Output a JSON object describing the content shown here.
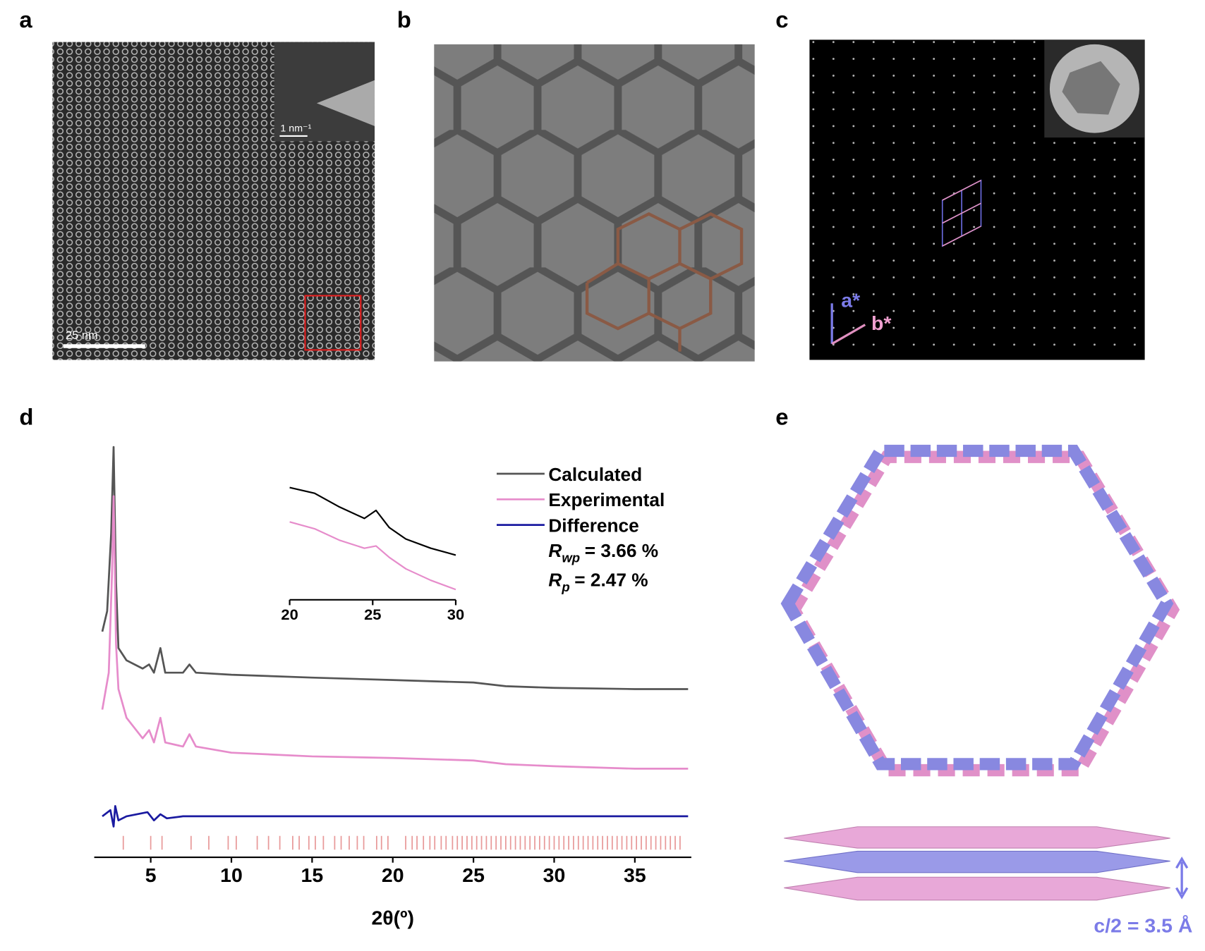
{
  "panel_labels": [
    "a",
    "b",
    "c",
    "d",
    "e"
  ],
  "panel_a": {
    "scale_bar_label": "25 nm",
    "inset_scale_bar_label": "1 nm⁻¹"
  },
  "panel_c": {
    "axis_labels": [
      "a*",
      "b*"
    ]
  },
  "panel_e": {
    "spacing_label": "c/2 = 3.5 Å"
  },
  "chart_data": [
    {
      "type": "line",
      "xlabel": "2θ(º)",
      "xlim": [
        1.5,
        38.5
      ],
      "xticks": [
        5,
        10,
        15,
        20,
        25,
        30,
        35
      ],
      "ylim": [
        0,
        100
      ],
      "series": [
        {
          "name": "Calculated",
          "color": "#555555",
          "x": [
            2.0,
            2.3,
            2.55,
            2.7,
            2.85,
            3.0,
            3.5,
            4.5,
            4.9,
            5.2,
            5.6,
            5.9,
            7.0,
            7.4,
            7.8,
            10,
            15,
            20,
            25,
            27,
            30,
            35,
            38.3
          ],
          "values": [
            55,
            60,
            79,
            100,
            67,
            51,
            48,
            46,
            47,
            45,
            51,
            45,
            45,
            47,
            45,
            44.5,
            43.8,
            43.2,
            42.6,
            41.7,
            41.3,
            41,
            41
          ]
        },
        {
          "name": "Experimental",
          "color": "#e68ccb",
          "x": [
            2.0,
            2.4,
            2.6,
            2.7,
            2.85,
            3.0,
            3.5,
            4.5,
            4.9,
            5.2,
            5.6,
            5.9,
            7.0,
            7.4,
            7.8,
            10,
            15,
            20,
            25,
            27,
            30,
            35,
            38.3
          ],
          "values": [
            36,
            45,
            69,
            88,
            52,
            41,
            34,
            29,
            31,
            28,
            34,
            28,
            27,
            30,
            27,
            25.5,
            24.6,
            24.2,
            23.6,
            22.7,
            22.2,
            21.6,
            21.6
          ]
        },
        {
          "name": "Difference",
          "color": "#1a1aa0",
          "x": [
            2.0,
            2.5,
            2.7,
            2.8,
            3.0,
            3.5,
            4.8,
            5.2,
            5.6,
            6.0,
            7.0,
            38.3
          ],
          "values": [
            10,
            11.5,
            7.5,
            12.5,
            9,
            10,
            11,
            9,
            10.5,
            9.5,
            10,
            10
          ]
        }
      ],
      "reflection_color": "#e89a9a",
      "reflection_positions": [
        3.3,
        5.0,
        5.7,
        7.5,
        8.6,
        9.8,
        10.3,
        11.6,
        12.3,
        13.0,
        13.8,
        14.2,
        14.8,
        15.2,
        15.7,
        16.4,
        16.8,
        17.3,
        17.8,
        18.2,
        19.0,
        19.3,
        19.7,
        20.8,
        21.2,
        21.5,
        21.9,
        22.3,
        22.6,
        23.0,
        23.3,
        23.7,
        24.0,
        24.3,
        24.6,
        24.9,
        25.2,
        25.5,
        25.8,
        26.1,
        26.4,
        26.7,
        27.0,
        27.3,
        27.6,
        27.9,
        28.2,
        28.5,
        28.8,
        29.1,
        29.4,
        29.7,
        30.0,
        30.3,
        30.6,
        30.9,
        31.2,
        31.5,
        31.8,
        32.1,
        32.4,
        32.7,
        33.0,
        33.3,
        33.6,
        33.9,
        34.2,
        34.5,
        34.8,
        35.1,
        35.4,
        35.7,
        36.0,
        36.3,
        36.6,
        36.9,
        37.2,
        37.5,
        37.8
      ],
      "legend_annotations": [
        {
          "symbol": "R",
          "subscript": "wp",
          "text": "= 3.66 %"
        },
        {
          "symbol": "R",
          "subscript": "p",
          "text": "= 2.47 %"
        }
      ]
    },
    {
      "type": "line",
      "xlim": [
        20,
        30
      ],
      "xticks": [
        20,
        25,
        30
      ],
      "ylim": [
        0,
        100
      ],
      "series": [
        {
          "color": "#000000",
          "x": [
            20,
            21.5,
            23,
            24.5,
            25.2,
            26,
            27,
            28.5,
            30
          ],
          "values": [
            98,
            93,
            81,
            71,
            78,
            63,
            53,
            45,
            39
          ]
        },
        {
          "color": "#e68ccb",
          "x": [
            20,
            21.5,
            23,
            24.5,
            25.2,
            26,
            27,
            28.5,
            30
          ],
          "values": [
            68,
            62,
            52,
            45,
            47,
            37,
            27,
            17,
            9
          ]
        }
      ]
    }
  ]
}
